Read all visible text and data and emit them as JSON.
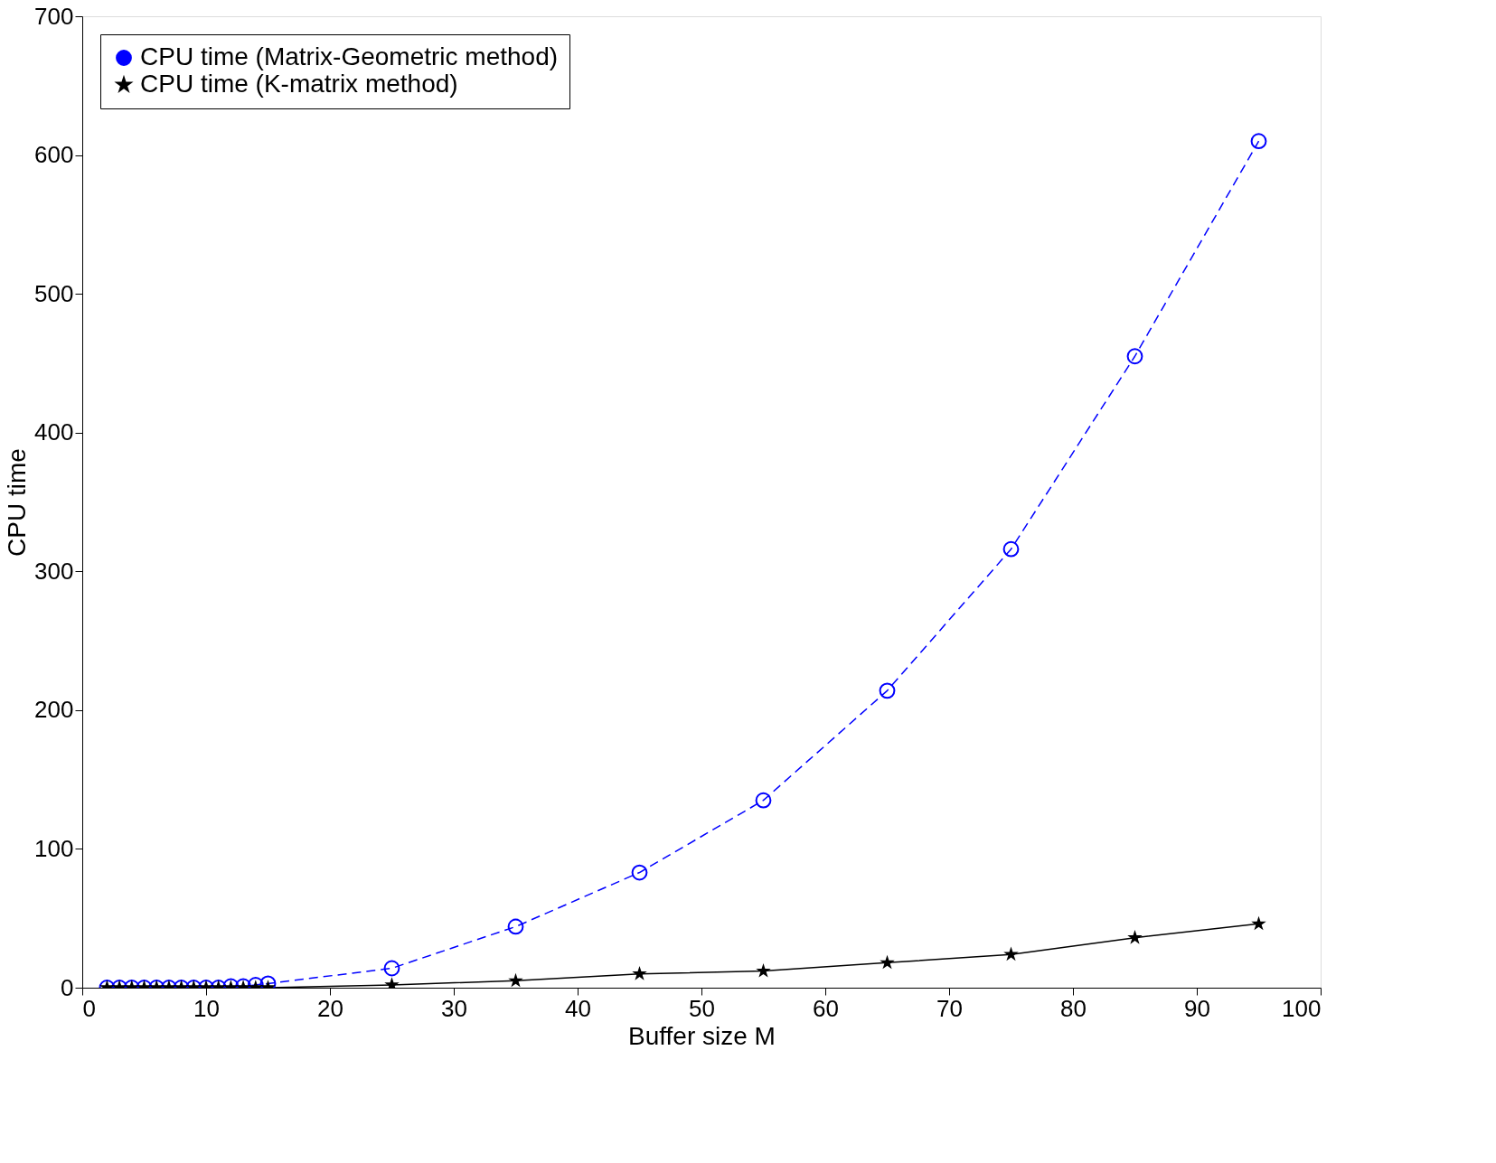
{
  "chart_data": {
    "type": "line",
    "xlabel": "Buffer size M",
    "ylabel": "CPU time",
    "xlim": [
      0,
      100
    ],
    "ylim": [
      0,
      700
    ],
    "xticks": [
      0,
      10,
      20,
      30,
      40,
      50,
      60,
      70,
      80,
      90,
      100
    ],
    "yticks": [
      0,
      100,
      200,
      300,
      400,
      500,
      600,
      700
    ],
    "grid": false,
    "legend": "top left",
    "x": [
      2,
      3,
      4,
      5,
      6,
      7,
      8,
      9,
      10,
      11,
      12,
      13,
      14,
      15,
      25,
      35,
      45,
      55,
      65,
      75,
      85,
      95
    ],
    "series": [
      {
        "name": "CPU time (Matrix-Geometric method)",
        "color": "#0000ff",
        "marker": "circle",
        "line_style": "dashed",
        "values": [
          0,
          0,
          0,
          0,
          0,
          0,
          0,
          0,
          0,
          0,
          1,
          1,
          2,
          3,
          14,
          44,
          83,
          135,
          214,
          316,
          455,
          610
        ]
      },
      {
        "name": "CPU time (K-matrix method)",
        "color": "#000000",
        "marker": "star",
        "line_style": "solid",
        "values": [
          0,
          0,
          0,
          0,
          0,
          0,
          0,
          0,
          0,
          0,
          0,
          0,
          0,
          0,
          2,
          5,
          10,
          12,
          18,
          24,
          36,
          46
        ]
      }
    ]
  }
}
